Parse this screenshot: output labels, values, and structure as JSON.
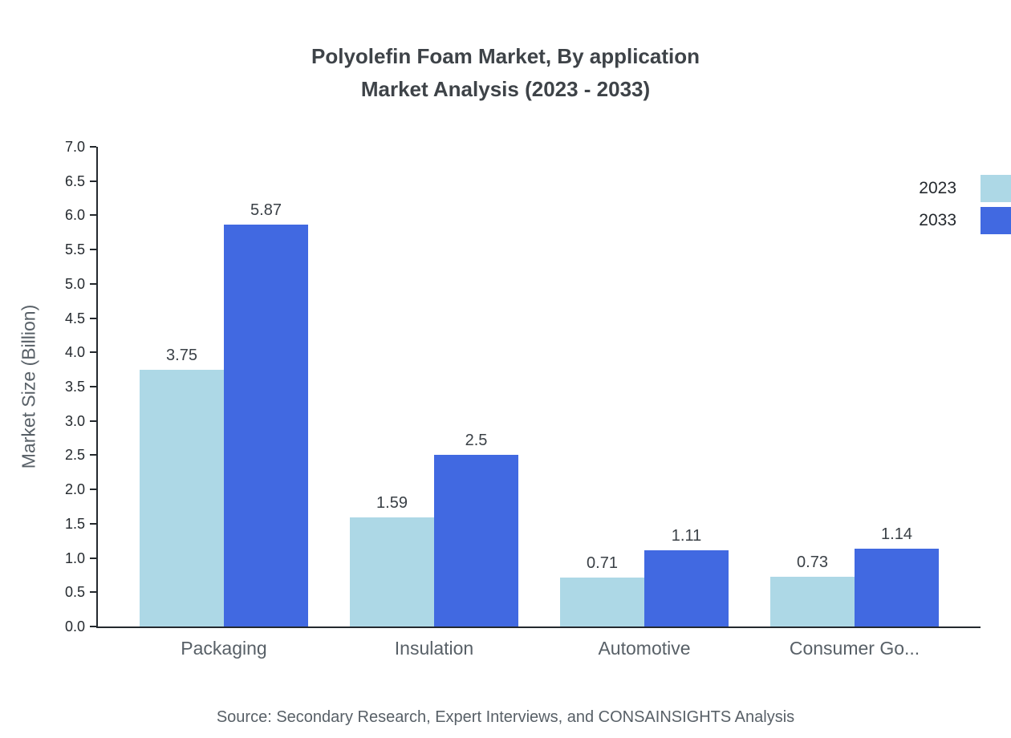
{
  "title": {
    "line1": "Polyolefin Foam Market, By application",
    "line2": "Market Analysis (2023 - 2033)"
  },
  "chart_data": {
    "type": "bar",
    "categories": [
      "Packaging",
      "Insulation",
      "Automotive",
      "Consumer Go..."
    ],
    "series": [
      {
        "name": "2023",
        "color": "#add8e6",
        "values": [
          3.75,
          1.59,
          0.71,
          0.73
        ]
      },
      {
        "name": "2033",
        "color": "#4169e1",
        "values": [
          5.87,
          2.5,
          1.11,
          1.14
        ]
      }
    ],
    "title": "Polyolefin Foam Market, By application Market Analysis (2023 - 2033)",
    "xlabel": "",
    "ylabel": "Market Size (Billion)",
    "ylim": [
      0,
      7
    ],
    "ytick_step": 0.5,
    "grid": false,
    "legend_position": "top-right"
  },
  "footer": {
    "source": "Source: Secondary Research, Expert Interviews, and CONSAINSIGHTS Analysis"
  }
}
